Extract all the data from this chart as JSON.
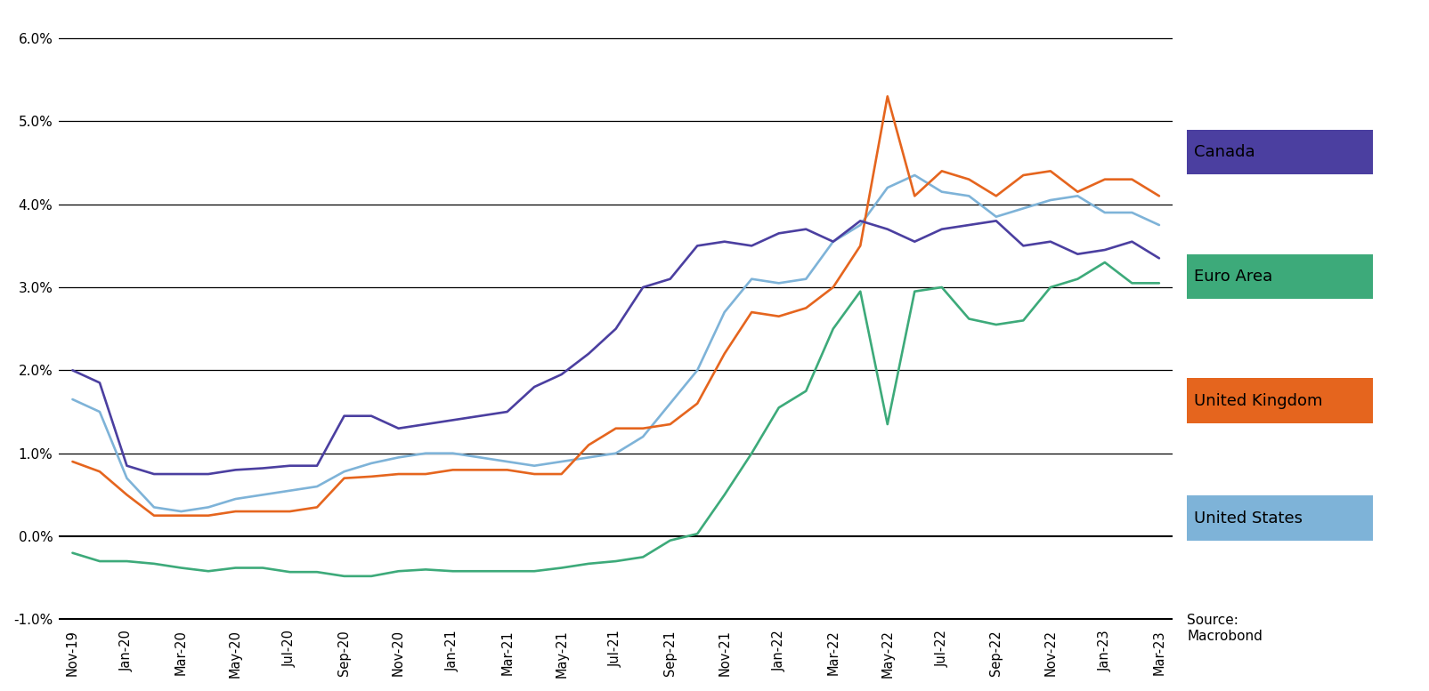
{
  "background_color": "#ffffff",
  "ylim": [
    -1.05,
    6.3
  ],
  "yticks": [
    -1.0,
    0.0,
    1.0,
    2.0,
    3.0,
    4.0,
    5.0,
    6.0
  ],
  "ytick_labels": [
    "-1.0%",
    "0.0%",
    "1.0%",
    "2.0%",
    "3.0%",
    "4.0%",
    "5.0%",
    "6.0%"
  ],
  "grid_y_vals": [
    -1.0,
    0.0,
    1.0,
    2.0,
    3.0,
    4.0,
    5.0,
    6.0
  ],
  "source_text": "Source:\nMacrobond",
  "x_labels": [
    "Nov-19",
    "Jan-20",
    "Mar-20",
    "May-20",
    "Jul-20",
    "Sep-20",
    "Nov-20",
    "Jan-21",
    "Mar-21",
    "May-21",
    "Jul-21",
    "Sep-21",
    "Nov-21",
    "Jan-22",
    "Mar-22",
    "May-22",
    "Jul-22",
    "Sep-22",
    "Nov-22",
    "Jan-23",
    "Mar-23"
  ],
  "colors": {
    "Canada": "#4b3fa0",
    "Euro Area": "#3daa7a",
    "United Kingdom": "#e5651e",
    "United States": "#7eb3d8"
  },
  "series": {
    "Canada": [
      2.0,
      1.85,
      0.85,
      0.75,
      0.75,
      0.75,
      0.8,
      0.82,
      0.85,
      0.85,
      1.45,
      1.45,
      1.3,
      1.35,
      1.4,
      1.45,
      1.5,
      1.8,
      1.95,
      2.2,
      2.5,
      3.0,
      3.1,
      3.5,
      3.55,
      3.5,
      3.65,
      3.7,
      3.55,
      3.8,
      3.7,
      3.55,
      3.7,
      3.75,
      3.8,
      3.5,
      3.55,
      3.4,
      3.45,
      3.55,
      3.35
    ],
    "Euro Area": [
      -0.2,
      -0.3,
      -0.3,
      -0.33,
      -0.38,
      -0.42,
      -0.38,
      -0.38,
      -0.43,
      -0.43,
      -0.48,
      -0.48,
      -0.42,
      -0.4,
      -0.42,
      -0.42,
      -0.42,
      -0.42,
      -0.38,
      -0.33,
      -0.3,
      -0.25,
      -0.05,
      0.03,
      0.5,
      1.0,
      1.55,
      1.75,
      2.5,
      2.95,
      1.35,
      2.95,
      3.0,
      2.62,
      2.55,
      2.6,
      3.0,
      3.1,
      3.3,
      3.05,
      3.05
    ],
    "United Kingdom": [
      0.9,
      0.78,
      0.5,
      0.25,
      0.25,
      0.25,
      0.3,
      0.3,
      0.3,
      0.35,
      0.7,
      0.72,
      0.75,
      0.75,
      0.8,
      0.8,
      0.8,
      0.75,
      0.75,
      1.1,
      1.3,
      1.3,
      1.35,
      1.6,
      2.2,
      2.7,
      2.65,
      2.75,
      3.0,
      3.5,
      5.3,
      4.1,
      4.4,
      4.3,
      4.1,
      4.35,
      4.4,
      4.15,
      4.3,
      4.3,
      4.1
    ],
    "United States": [
      1.65,
      1.5,
      0.7,
      0.35,
      0.3,
      0.35,
      0.45,
      0.5,
      0.55,
      0.6,
      0.78,
      0.88,
      0.95,
      1.0,
      1.0,
      0.95,
      0.9,
      0.85,
      0.9,
      0.95,
      1.0,
      1.2,
      1.6,
      2.0,
      2.7,
      3.1,
      3.05,
      3.1,
      3.55,
      3.75,
      4.2,
      4.35,
      4.15,
      4.1,
      3.85,
      3.95,
      4.05,
      4.1,
      3.9,
      3.9,
      3.75
    ]
  },
  "n_points": 41,
  "legend_items": [
    "Canada",
    "Euro Area",
    "United Kingdom",
    "United States"
  ]
}
